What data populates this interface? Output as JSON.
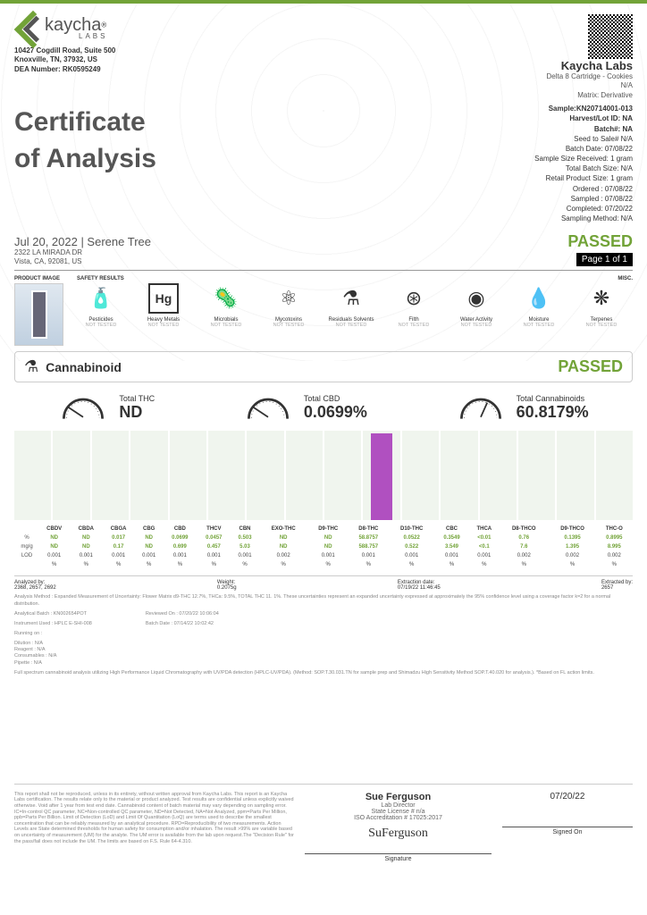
{
  "brand": {
    "name": "kaycha",
    "sub": "LABS"
  },
  "address": {
    "line1": "10427 Cogdill Road, Suite 500",
    "line2": "Knoxville, TN, 37932, US",
    "dea": "DEA Number: RK0595249"
  },
  "lab": {
    "name": "Kaycha Labs",
    "product": "Delta 8 Cartridge - Cookies",
    "na": "N/A",
    "matrix": "Matrix: Derivative"
  },
  "title1": "Certificate",
  "title2": "of Analysis",
  "sample": {
    "id": "Sample:KN20714001-013",
    "harvest": "Harvest/Lot ID: NA",
    "batch": "Batch#: NA",
    "seed": "Seed to Sale# N/A",
    "batchdate": "Batch Date: 07/08/22",
    "size": "Sample Size Received: 1 gram",
    "totalbatch": "Total Batch Size: N/A",
    "retail": "Retail Product Size: 1 gram",
    "ordered": "Ordered : 07/08/22",
    "sampled": "Sampled : 07/08/22",
    "completed": "Completed: 07/20/22",
    "method": "Sampling Method: N/A"
  },
  "client": {
    "date": "Jul 20, 2022 | Serene Tree",
    "addr1": "2322 LA MIRADA DR",
    "addr2": "Vista, CA, 92081, US"
  },
  "status": {
    "passed": "PASSED",
    "page": "Page 1 of 1"
  },
  "labels": {
    "product_image": "PRODUCT IMAGE",
    "safety_results": "SAFETY RESULTS",
    "misc": "MISC."
  },
  "safety": [
    {
      "icon": "🧴",
      "name": "Pesticides",
      "status": "NOT TESTED"
    },
    {
      "icon": "Hg",
      "name": "Heavy Metals",
      "status": "NOT TESTED"
    },
    {
      "icon": "🦠",
      "name": "Microbials",
      "status": "NOT TESTED"
    },
    {
      "icon": "⚛",
      "name": "Mycotoxins",
      "status": "NOT TESTED"
    },
    {
      "icon": "⚗",
      "name": "Residuals Solvents",
      "status": "NOT TESTED"
    },
    {
      "icon": "⊛",
      "name": "Filth",
      "status": "NOT TESTED"
    },
    {
      "icon": "◉",
      "name": "Water Activity",
      "status": "NOT TESTED"
    },
    {
      "icon": "💧",
      "name": "Moisture",
      "status": "NOT TESTED"
    },
    {
      "icon": "❋",
      "name": "Terpenes",
      "status": "NOT TESTED"
    }
  ],
  "cannabinoid": {
    "title": "Cannabinoid",
    "passed": "PASSED"
  },
  "gauges": {
    "thc": {
      "label": "Total THC",
      "value": "ND"
    },
    "cbd": {
      "label": "Total CBD",
      "value": "0.0699%"
    },
    "total": {
      "label": "Total Cannabinoids",
      "value": "60.8179%"
    }
  },
  "chart": {
    "bars": [
      0,
      0,
      0,
      0,
      0,
      0,
      0,
      0,
      0,
      97,
      0,
      0,
      0,
      0,
      0,
      0
    ]
  },
  "compounds": [
    "CBDV",
    "CBDA",
    "CBGA",
    "CBG",
    "CBD",
    "THCV",
    "CBN",
    "EXO-THC",
    "D9-THC",
    "D8-THC",
    "D10-THC",
    "CBC",
    "THCA",
    "D8-THCO",
    "D9-THCO",
    "THC-O"
  ],
  "rows": {
    "pct": [
      "ND",
      "ND",
      "0.017",
      "ND",
      "0.0699",
      "0.0457",
      "0.503",
      "ND",
      "ND",
      "58.8757",
      "0.0522",
      "0.3549",
      "<0.01",
      "0.76",
      "0.1395",
      "0.8995"
    ],
    "mgg": [
      "ND",
      "ND",
      "0.17",
      "ND",
      "0.699",
      "0.457",
      "5.03",
      "ND",
      "ND",
      "588.757",
      "0.522",
      "3.549",
      "<0.1",
      "7.6",
      "1.395",
      "8.995"
    ],
    "lod": [
      "0.001",
      "0.001",
      "0.001",
      "0.001",
      "0.001",
      "0.001",
      "0.001",
      "0.002",
      "0.001",
      "0.001",
      "0.001",
      "0.001",
      "0.001",
      "0.002",
      "0.002",
      "0.002"
    ],
    "labels": {
      "pct": "%",
      "mgg": "mg/g",
      "lod": "LOD"
    }
  },
  "meta": {
    "analyzed": "Analyzed by:\n2368, 2657, 2692",
    "weight": "Weight:\n0.2075g",
    "extraction": "Extraction date:\n07/19/22 11:46:45",
    "extracted": "Extracted by:\n2657"
  },
  "fine1": "Analysis Method : Expanded Measurement of Uncertainty: Flower Matrix d9-THC 12.7%, THCa: 9.5%, TOTAL THC 11. 1%. These uncertainties represent an expanded uncertainty expressed at approximately the 95% confidence level using a coverage factor k=2 for a normal distribution.",
  "fine2": "Analytical Batch : KN002654POT",
  "fine3": "Instrument Used : HPLC E-SHI-008",
  "fine4": "Running on :",
  "fine5": "Reviewed On : 07/20/22 10:06:04",
  "fine6": "Batch Date : 07/14/22 10:02:42",
  "fine7": "Dilution : N/A\nReagent : N/A\nConsumables : N/A\nPipette : N/A",
  "fine8": "Full spectrum cannabinoid analysis utilizing High Performance Liquid Chromatography with UV/PDA detection (HPLC-UV/PDA). (Method: SOP.T.30.031.TN for sample prep and Shimadzu High Sensitivity Method SOP.T.40.020 for analysis.). *Based on FL action limits.",
  "footer": {
    "disclaimer": "This report shall not be reproduced, unless in its entirety, without written approval from Kaycha Labs. This report is an Kaycha Labs certification. The results relate only to the material or product analyzed. Test results are confidential unless explicitly waived otherwise. Void after 1 year from test end date. Cannabinoid content of batch material may vary depending on sampling error. IC=In-control QC parameter, NC=Non-controlled QC parameter, ND=Not Detected, NA=Not Analyzed, ppm=Parts Per Million, ppb=Parts Per Billion. Limit of Detection (LoD) and Limit Of Quantitation (LoQ) are terms used to describe the smallest concentration that can be reliably measured by an analytical procedure. RPD=Reproducibility of two measurements. Action Levels are State determined thresholds for human safety for consumption and/or inhalation. The result >99% are variable based on uncertainty of measurement (UM) for the analyte. The UM error is available from the lab upon request.The \"Decision Rule\" for the pass/fail does not include the UM. The limits are based on F.S. Rule 64-4.310.",
    "sig_name": "Sue Ferguson",
    "sig_title": "Lab Director",
    "state_lic": "State License # n/a",
    "iso": "ISO Accreditation # 17025:2017",
    "signature": "SuFerguson",
    "sig_label": "Signature",
    "date": "07/20/22",
    "signed": "Signed On"
  }
}
